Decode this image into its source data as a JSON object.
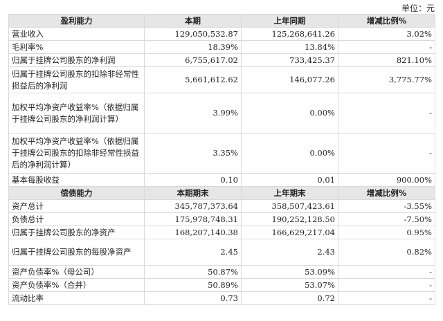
{
  "unit_label": "单位：元",
  "section1": {
    "headers": [
      "盈利能力",
      "本期",
      "上年同期",
      "增减比例%"
    ],
    "rows": [
      {
        "label": "营业收入",
        "cur": "129,050,532.87",
        "prev": "125,268,641.26",
        "chg": "3.02%"
      },
      {
        "label": "毛利率%",
        "cur": "18.39%",
        "prev": "13.84%",
        "chg": "-"
      },
      {
        "label": "归属于挂牌公司股东的净利润",
        "cur": "6,755,617.02",
        "prev": "733,425.37",
        "chg": "821.10%"
      },
      {
        "label": "归属于挂牌公司股东的扣除非经常性损益后的净利润",
        "cur": "5,661,612.62",
        "prev": "146,077.26",
        "chg": "3,775.77%"
      },
      {
        "label": "加权平均净资产收益率%（依据归属于挂牌公司股东的净利润计算）",
        "cur": "3.99%",
        "prev": "0.00%",
        "chg": "-"
      },
      {
        "label": "加权平均净资产收益率%（依据归属于挂牌公司股东的扣除非经常性损益后的净利润计算）",
        "cur": "3.35%",
        "prev": "0.00%",
        "chg": "-"
      },
      {
        "label": "基本每股收益",
        "cur": "0.10",
        "prev": "0.01",
        "chg": "900.00%"
      }
    ]
  },
  "section2": {
    "headers": [
      "偿债能力",
      "本期期末",
      "上年期末",
      "增减比例%"
    ],
    "rows": [
      {
        "label": "资产总计",
        "cur": "345,787,373.64",
        "prev": "358,507,423.61",
        "chg": "-3.55%"
      },
      {
        "label": "负债总计",
        "cur": "175,978,748.31",
        "prev": "190,252,128.50",
        "chg": "-7.50%"
      },
      {
        "label": "归属于挂牌公司股东的净资产",
        "cur": "168,207,140.38",
        "prev": "166,629,217.04",
        "chg": "0.95%"
      },
      {
        "label": "归属于挂牌公司股东的每股净资产",
        "cur": "2.45",
        "prev": "2.43",
        "chg": "0.82%"
      },
      {
        "label": "资产负债率%（母公司）",
        "cur": "50.87%",
        "prev": "53.09%",
        "chg": "-"
      },
      {
        "label": "资产负债率%（合并）",
        "cur": "50.89%",
        "prev": "53.07%",
        "chg": "-"
      },
      {
        "label": "流动比率",
        "cur": "0.73",
        "prev": "0.72",
        "chg": "-"
      }
    ]
  }
}
